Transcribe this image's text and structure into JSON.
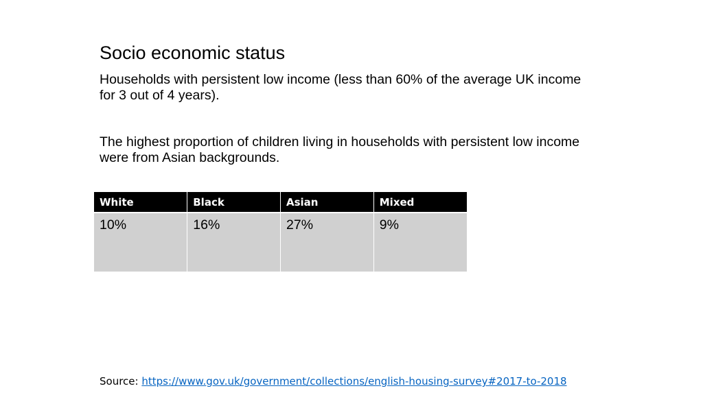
{
  "slide": {
    "title": "Socio economic status",
    "paragraph_1": "Households with persistent low income (less than 60% of the average UK income for 3 out of 4 years).",
    "paragraph_2": "The highest proportion of children living in households with persistent low income were from Asian backgrounds."
  },
  "table": {
    "headers": [
      "White",
      "Black",
      "Asian",
      "Mixed"
    ],
    "values": [
      "10%",
      "16%",
      "27%",
      "9%"
    ]
  },
  "source": {
    "label": "Source: ",
    "link_text": "https://www.gov.uk/government/collections/english-housing-survey#2017-to-2018"
  },
  "colors": {
    "header_bg": "#000000",
    "cell_bg": "#d0d0d0",
    "link": "#0563c1"
  }
}
